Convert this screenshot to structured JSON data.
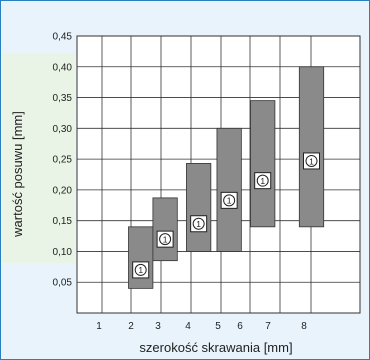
{
  "chart_data": {
    "type": "range-bar",
    "xlabel": "szerokość skrawania [mm]",
    "ylabel": "wartość posuwu [mm]",
    "x_ticks": [
      1,
      2,
      3,
      4,
      5,
      6,
      7,
      8
    ],
    "y_ticks": [
      "0,05",
      "0,10",
      "0,15",
      "0,20",
      "0,25",
      "0,30",
      "0,35",
      "0,40",
      "0,45"
    ],
    "ylim": [
      0,
      0.45
    ],
    "grid": true,
    "marker_label": "①",
    "bars": [
      {
        "x_from": 2.0,
        "x_to": 2.8,
        "low": 0.04,
        "high": 0.14,
        "marker": 0.07
      },
      {
        "x_from": 2.8,
        "x_to": 3.6,
        "low": 0.085,
        "high": 0.187,
        "marker": 0.12
      },
      {
        "x_from": 3.9,
        "x_to": 4.7,
        "low": 0.1,
        "high": 0.243,
        "marker": 0.145
      },
      {
        "x_from": 4.9,
        "x_to": 5.7,
        "low": 0.1,
        "high": 0.3,
        "marker": 0.183
      },
      {
        "x_from": 6.0,
        "x_to": 6.8,
        "low": 0.14,
        "high": 0.345,
        "marker": 0.215
      },
      {
        "x_from": 7.6,
        "x_to": 8.4,
        "low": 0.14,
        "high": 0.4,
        "marker": 0.247
      }
    ],
    "colors": {
      "bar": "#8a8a8a",
      "bar_edge": "#333333",
      "grid": "#333333",
      "frame": "#2a7fc0"
    }
  }
}
